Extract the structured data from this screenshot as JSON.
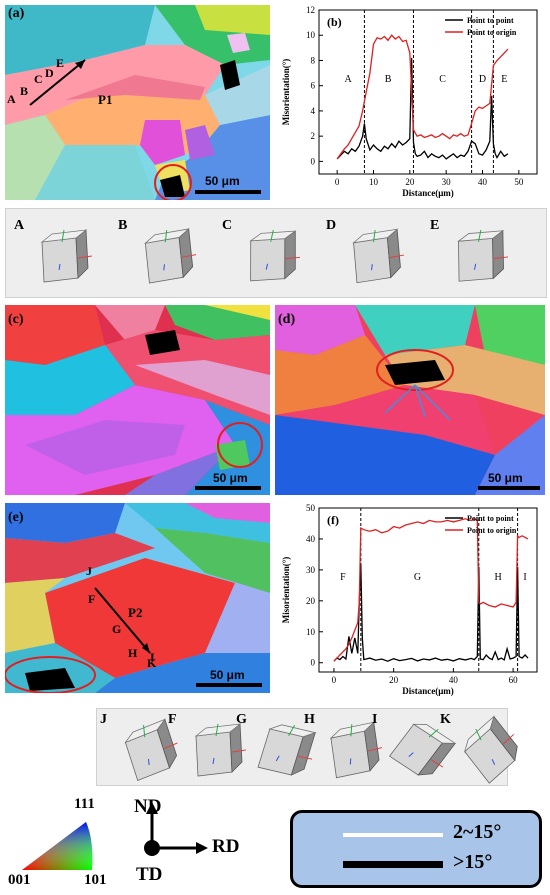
{
  "panels": {
    "a": {
      "letter": "(a)",
      "scale": "50 μm",
      "grain_label": "P1",
      "points": [
        "A",
        "B",
        "C",
        "D",
        "E"
      ]
    },
    "b": {
      "letter": "(b)"
    },
    "c": {
      "letter": "(c)",
      "scale": "50 μm"
    },
    "d": {
      "letter": "(d)",
      "scale": "50 μm"
    },
    "e": {
      "letter": "(e)",
      "scale": "50 μm",
      "grain_label": "P2",
      "points": [
        "J",
        "F",
        "G",
        "H",
        "I",
        "K"
      ]
    },
    "f": {
      "letter": "(f)"
    }
  },
  "cubes_top": [
    "A",
    "B",
    "C",
    "D",
    "E"
  ],
  "cubes_bottom": [
    "J",
    "F",
    "G",
    "H",
    "I",
    "K"
  ],
  "ipf": {
    "top": "111",
    "left": "001",
    "right": "101"
  },
  "axes": {
    "up": "ND",
    "right": "RD",
    "origin": "TD"
  },
  "legend": {
    "thin": "2~15°",
    "thick": ">15°",
    "thin_color": "#ffffff",
    "thick_color": "#000000",
    "bg": "#a8c4e8"
  },
  "chart_data": [
    {
      "type": "line",
      "title": "(b)",
      "xlabel": "Distance(μm)",
      "ylabel": "Misorientation(°)",
      "xlim": [
        -5,
        55
      ],
      "ylim": [
        -1,
        12
      ],
      "xticks": [
        0,
        10,
        20,
        30,
        40,
        50
      ],
      "yticks": [
        0,
        2,
        4,
        6,
        8,
        10,
        12
      ],
      "boundaries": [
        7.5,
        21,
        37,
        43
      ],
      "segments": [
        "A",
        "B",
        "C",
        "D",
        "E"
      ],
      "segment_x": [
        3,
        14,
        29,
        40,
        46
      ],
      "series": [
        {
          "name": "Point to point",
          "color": "#000000",
          "x": [
            0,
            1,
            2,
            3,
            4,
            5,
            6,
            7,
            7.5,
            8,
            9,
            10,
            11,
            12,
            13,
            14,
            15,
            16,
            17,
            18,
            19,
            20,
            20.5,
            21,
            21.5,
            22,
            23,
            24,
            25,
            26,
            27,
            28,
            29,
            30,
            31,
            32,
            33,
            34,
            35,
            36,
            37,
            38,
            39,
            40,
            41,
            42,
            42.5,
            43,
            43.5,
            44,
            45,
            46,
            47
          ],
          "y": [
            0.2,
            0.5,
            0.8,
            0.6,
            1.0,
            0.8,
            1.2,
            2.0,
            3.0,
            1.8,
            0.9,
            1.3,
            1.0,
            0.8,
            1.2,
            1.0,
            1.4,
            1.1,
            1.6,
            1.3,
            1.5,
            1.8,
            8.2,
            1.5,
            0.6,
            0.4,
            0.5,
            0.8,
            0.3,
            0.6,
            0.4,
            0.3,
            0.5,
            0.2,
            0.4,
            0.6,
            0.3,
            0.5,
            0.4,
            0.8,
            1.6,
            1.4,
            0.6,
            0.5,
            0.9,
            1.6,
            5.2,
            1.4,
            0.6,
            0.3,
            0.8,
            0.4,
            0.6
          ]
        },
        {
          "name": "Point to origin",
          "color": "#e02020",
          "x": [
            0,
            1,
            2,
            3,
            4,
            5,
            6,
            7,
            8,
            9,
            10,
            11,
            12,
            13,
            14,
            15,
            16,
            17,
            18,
            19,
            20,
            21,
            22,
            23,
            24,
            25,
            26,
            27,
            28,
            29,
            30,
            31,
            32,
            33,
            34,
            35,
            36,
            37,
            38,
            39,
            40,
            41,
            42,
            43,
            44,
            45,
            46,
            47
          ],
          "y": [
            0.2,
            0.6,
            1.0,
            1.3,
            1.8,
            2.3,
            2.8,
            4.0,
            5.5,
            7.0,
            9.3,
            9.8,
            9.7,
            9.9,
            9.6,
            10.0,
            9.7,
            9.9,
            9.5,
            9.6,
            8.6,
            2.5,
            2.0,
            2.1,
            1.9,
            2.0,
            2.1,
            1.9,
            2.0,
            2.2,
            2.0,
            1.8,
            2.1,
            2.0,
            2.2,
            2.0,
            2.1,
            3.0,
            4.0,
            4.3,
            4.2,
            4.4,
            4.6,
            7.6,
            8.0,
            8.3,
            8.6,
            8.9
          ]
        }
      ]
    },
    {
      "type": "line",
      "title": "(f)",
      "xlabel": "Distance(μm)",
      "ylabel": "Misorientation(°)",
      "xlim": [
        -5,
        68
      ],
      "ylim": [
        -3,
        50
      ],
      "xticks": [
        0,
        20,
        40,
        60
      ],
      "yticks": [
        0,
        10,
        20,
        30,
        40,
        50
      ],
      "boundaries": [
        9,
        48.5,
        61.5
      ],
      "segments": [
        "F",
        "G",
        "H",
        "I"
      ],
      "segment_x": [
        3,
        28,
        55,
        64
      ],
      "series": [
        {
          "name": "Point to point",
          "color": "#000000",
          "x": [
            0,
            1,
            2,
            3,
            4,
            5,
            6,
            7,
            8,
            8.5,
            9,
            9.5,
            10,
            12,
            14,
            16,
            18,
            20,
            22,
            24,
            26,
            28,
            30,
            32,
            34,
            36,
            38,
            40,
            42,
            44,
            46,
            47,
            48,
            48.5,
            49,
            50,
            51,
            52,
            53,
            54,
            55,
            56,
            57,
            58,
            59,
            60,
            61,
            61.5,
            62,
            63,
            64,
            65
          ],
          "y": [
            0.5,
            1.5,
            1.0,
            2.0,
            1.2,
            8.5,
            3.0,
            8.0,
            3.0,
            20,
            32,
            8,
            1.0,
            1.5,
            0.8,
            1.2,
            0.5,
            1.3,
            0.7,
            1.0,
            1.4,
            0.6,
            1.2,
            0.9,
            1.5,
            0.8,
            1.1,
            0.6,
            1.3,
            0.9,
            1.4,
            1.0,
            2.0,
            31,
            1.2,
            1.0,
            2.5,
            1.5,
            1.0,
            3.5,
            1.0,
            1.5,
            0.9,
            4.5,
            1.2,
            1.5,
            2.0,
            31,
            2.0,
            1.5,
            2.5,
            1.5
          ]
        },
        {
          "name": "Point to origin",
          "color": "#e02020",
          "x": [
            0,
            1,
            2,
            3,
            4,
            5,
            6,
            7,
            8,
            8.5,
            9,
            10,
            12,
            14,
            16,
            18,
            20,
            22,
            24,
            26,
            28,
            30,
            32,
            34,
            36,
            38,
            40,
            42,
            44,
            46,
            47,
            48,
            48.5,
            49,
            50,
            52,
            54,
            56,
            58,
            60,
            61,
            61.5,
            62,
            63,
            64,
            65
          ],
          "y": [
            0.5,
            1.5,
            2.5,
            3.5,
            4.5,
            6.0,
            8.0,
            10.5,
            13.0,
            20,
            43.5,
            43.0,
            42.5,
            43.0,
            42.0,
            42.5,
            44.0,
            43.5,
            44.5,
            45.0,
            45.5,
            45.0,
            46.0,
            45.5,
            45.5,
            46.0,
            45.5,
            46.0,
            46.5,
            46.0,
            46.5,
            46.0,
            19.5,
            19.0,
            19.5,
            18.5,
            18.0,
            19.0,
            18.5,
            18.0,
            19.5,
            41.0,
            40.5,
            41.0,
            40.5,
            40.0
          ]
        }
      ]
    }
  ]
}
